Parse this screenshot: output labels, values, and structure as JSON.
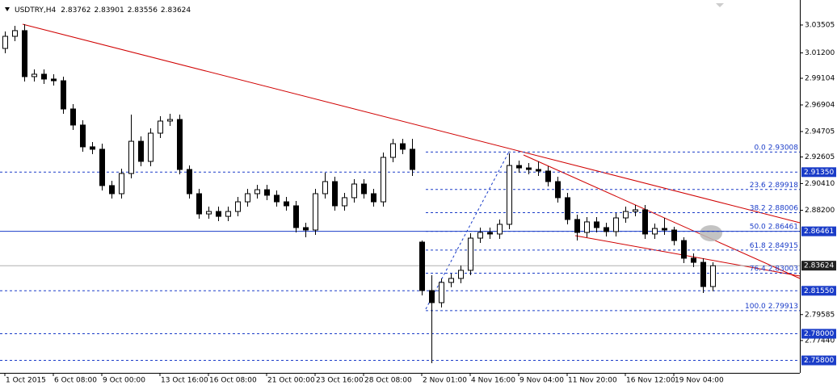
{
  "chart_data": {
    "type": "candlestick",
    "symbol": "USDTRY,H4",
    "header_ohlc": [
      2.83762,
      2.83901,
      2.83556,
      2.83624
    ],
    "ylim": [
      2.7477,
      3.0557
    ],
    "yticks": [
      3.03505,
      {
        "value": 3.012,
        "label": "3.01200"
      },
      2.99104,
      2.96904,
      2.94705,
      2.92605,
      {
        "value": 2.9041,
        "label": "2.90410"
      },
      {
        "value": 2.882,
        "label": "2.88200"
      },
      2.79585,
      {
        "value": 2.7744,
        "label": "2.77440"
      }
    ],
    "categories": [
      "1 Oct 2015",
      null,
      null,
      null,
      null,
      "6 Oct 08:00",
      null,
      null,
      null,
      null,
      "9 Oct 00:00",
      null,
      null,
      null,
      null,
      null,
      "13 Oct 16:00",
      null,
      null,
      null,
      null,
      "16 Oct 08:00",
      null,
      null,
      null,
      null,
      null,
      "21 Oct 00:00",
      null,
      null,
      null,
      null,
      "23 Oct 16:00",
      null,
      null,
      null,
      null,
      "28 Oct 08:00",
      null,
      null,
      null,
      null,
      null,
      "2 Nov 01:00",
      null,
      null,
      null,
      null,
      "4 Nov 16:00",
      null,
      null,
      null,
      null,
      "9 Nov 04:00",
      null,
      null,
      null,
      null,
      "11 Nov 20:00",
      null,
      null,
      null,
      null,
      null,
      "16 Nov 12:00",
      null,
      null,
      null,
      null,
      "19 Nov 04:00",
      null,
      null,
      null,
      null
    ],
    "ohlc": [
      [
        3.0157,
        3.0297,
        3.0117,
        3.0257
      ],
      [
        3.0257,
        3.0344,
        3.0217,
        3.0304
      ],
      [
        3.0304,
        3.0357,
        2.9884,
        2.9924
      ],
      [
        2.9924,
        2.9984,
        2.9884,
        2.9944
      ],
      [
        2.9944,
        2.9984,
        2.9864,
        2.9904
      ],
      [
        2.9904,
        2.9944,
        2.985,
        2.989
      ],
      [
        2.989,
        2.9924,
        2.9617,
        2.9657
      ],
      [
        2.9657,
        2.9697,
        2.9484,
        2.9524
      ],
      [
        2.9524,
        2.9564,
        2.9304,
        2.9344
      ],
      [
        2.9344,
        2.9384,
        2.9284,
        2.9324
      ],
      [
        2.9324,
        2.937,
        2.8984,
        2.9024
      ],
      [
        2.9024,
        2.9064,
        2.8917,
        2.8957
      ],
      [
        2.8957,
        2.9164,
        2.8917,
        2.9124
      ],
      [
        2.9124,
        2.961,
        2.9084,
        2.939
      ],
      [
        2.939,
        2.943,
        2.9184,
        2.9224
      ],
      [
        2.9224,
        2.9497,
        2.9184,
        2.9457
      ],
      [
        2.9457,
        2.9597,
        2.9417,
        2.9557
      ],
      [
        2.9557,
        2.9617,
        2.9517,
        2.957
      ],
      [
        2.957,
        2.961,
        2.9117,
        2.9157
      ],
      [
        2.9157,
        2.919,
        2.8917,
        2.8957
      ],
      [
        2.8957,
        2.8997,
        2.875,
        2.879
      ],
      [
        2.879,
        2.885,
        2.875,
        2.881
      ],
      [
        2.881,
        2.885,
        2.873,
        2.877
      ],
      [
        2.877,
        2.885,
        2.873,
        2.881
      ],
      [
        2.881,
        2.893,
        2.877,
        2.889
      ],
      [
        2.889,
        2.8997,
        2.885,
        2.8957
      ],
      [
        2.8957,
        2.903,
        2.8917,
        2.899
      ],
      [
        2.899,
        2.903,
        2.8904,
        2.8944
      ],
      [
        2.8944,
        2.8984,
        2.885,
        2.889
      ],
      [
        2.889,
        2.893,
        2.8817,
        2.8857
      ],
      [
        2.8857,
        2.8897,
        2.8637,
        2.8677
      ],
      [
        2.8677,
        2.8717,
        2.8597,
        2.8657
      ],
      [
        2.8657,
        2.8997,
        2.8617,
        2.8957
      ],
      [
        2.8957,
        2.913,
        2.8917,
        2.9057
      ],
      [
        2.9057,
        2.9097,
        2.8817,
        2.8857
      ],
      [
        2.8857,
        2.8964,
        2.8817,
        2.8924
      ],
      [
        2.8924,
        2.9077,
        2.8884,
        2.9037
      ],
      [
        2.9037,
        2.9077,
        2.8917,
        2.8957
      ],
      [
        2.8957,
        2.8997,
        2.885,
        2.889
      ],
      [
        2.889,
        2.9297,
        2.885,
        2.9257
      ],
      [
        2.9257,
        2.941,
        2.9217,
        2.937
      ],
      [
        2.937,
        2.941,
        2.9284,
        2.9324
      ],
      [
        2.9324,
        2.941,
        2.9104,
        2.9157
      ],
      [
        2.8557,
        2.857,
        2.8117,
        2.8157
      ],
      [
        2.8157,
        2.8284,
        2.7557,
        2.8057
      ],
      [
        2.8057,
        2.8257,
        2.8017,
        2.8224
      ],
      [
        2.8224,
        2.8297,
        2.8184,
        2.8257
      ],
      [
        2.8257,
        2.8364,
        2.8217,
        2.8324
      ],
      [
        2.8324,
        2.863,
        2.8284,
        2.859
      ],
      [
        2.859,
        2.8677,
        2.855,
        2.8637
      ],
      [
        2.8637,
        2.8677,
        2.8584,
        2.8624
      ],
      [
        2.8624,
        2.8744,
        2.8584,
        2.8704
      ],
      [
        2.8704,
        2.929,
        2.8664,
        2.919
      ],
      [
        2.919,
        2.923,
        2.913,
        2.917
      ],
      [
        2.917,
        2.921,
        2.9117,
        2.9157
      ],
      [
        2.9157,
        2.9224,
        2.9104,
        2.9144
      ],
      [
        2.9144,
        2.9184,
        2.9017,
        2.9057
      ],
      [
        2.9057,
        2.9097,
        2.8884,
        2.8924
      ],
      [
        2.8924,
        2.8964,
        2.8704,
        2.8744
      ],
      [
        2.8744,
        2.8784,
        2.857,
        2.8637
      ],
      [
        2.8637,
        2.8764,
        2.8597,
        2.8724
      ],
      [
        2.8724,
        2.8764,
        2.8637,
        2.8677
      ],
      [
        2.8677,
        2.8717,
        2.8604,
        2.8644
      ],
      [
        2.8644,
        2.8797,
        2.8604,
        2.8757
      ],
      [
        2.8757,
        2.885,
        2.8717,
        2.881
      ],
      [
        2.881,
        2.8864,
        2.877,
        2.8824
      ],
      [
        2.8824,
        2.8864,
        2.8584,
        2.8624
      ],
      [
        2.8624,
        2.871,
        2.8584,
        2.867
      ],
      [
        2.867,
        2.8757,
        2.8617,
        2.8657
      ],
      [
        2.8657,
        2.8684,
        2.853,
        2.857
      ],
      [
        2.857,
        2.8597,
        2.8384,
        2.8424
      ],
      [
        2.8424,
        2.8464,
        2.835,
        2.839
      ],
      [
        2.839,
        2.8424,
        2.8137,
        2.819
      ],
      [
        2.819,
        2.839,
        2.815,
        2.8362
      ]
    ],
    "hlines": [
      {
        "value": 2.9135,
        "label": "2.91350",
        "dashed": true
      },
      {
        "value": 2.86461,
        "label": "2.86461",
        "dashed": false
      },
      {
        "value": 2.8155,
        "label": "2.81550",
        "dashed": true
      },
      {
        "value": 2.78,
        "label": "2.78000",
        "dashed": true
      },
      {
        "value": 2.758,
        "label": "2.75800",
        "dashed": true
      }
    ],
    "current_price": 2.83624,
    "fibonacci": [
      {
        "level": "0.0",
        "price": 2.93008
      },
      {
        "level": "23.6",
        "price": 2.89918
      },
      {
        "level": "38.2",
        "price": 2.88006
      },
      {
        "level": "50.0",
        "price": 2.86461
      },
      {
        "level": "61.8",
        "price": 2.84915
      },
      {
        "level": "76.4",
        "price": 2.83003
      },
      {
        "level": "100.0",
        "price": 2.79913
      }
    ],
    "colors": {
      "bull": "#ffffff",
      "bear": "#000000",
      "level": "#1a3cc8",
      "current": "#b0b0b0",
      "box": "#1a3cc8",
      "current_box": "#202020"
    }
  }
}
